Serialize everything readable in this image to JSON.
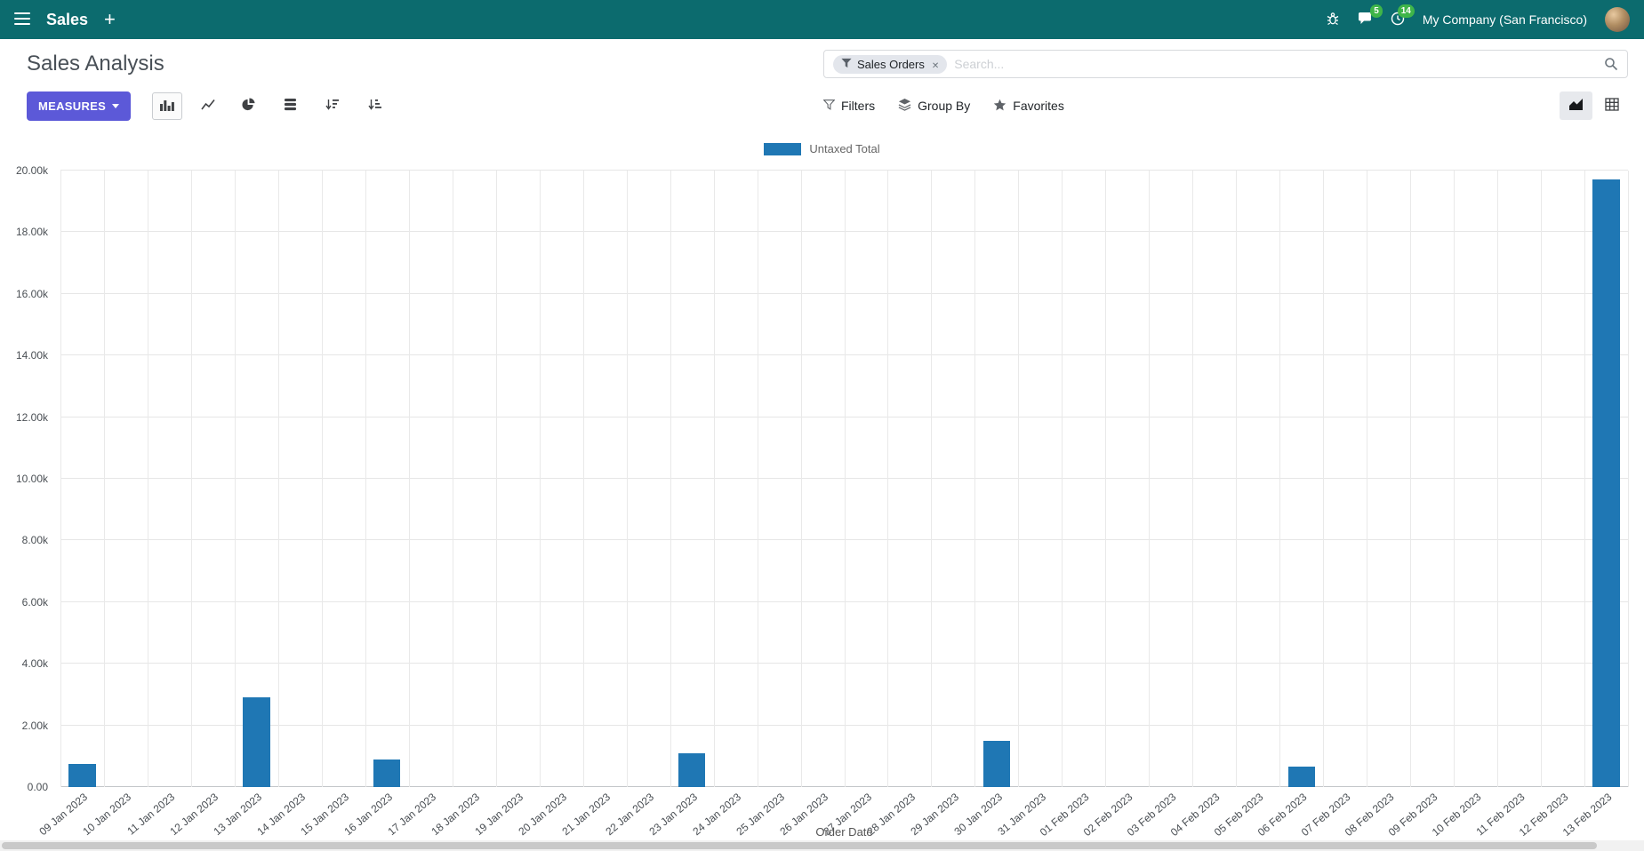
{
  "colors": {
    "navbar_bg": "#0c6b6e",
    "primary_button": "#5c59d8",
    "badge_green": "#3fb549",
    "bar": "#1f77b4"
  },
  "navbar": {
    "app_name": "Sales",
    "plus_label": "+",
    "messages_badge": "5",
    "activities_badge": "14",
    "company": "My Company (San Francisco)"
  },
  "control_panel": {
    "title": "Sales Analysis",
    "measures_label": "MEASURES",
    "search": {
      "facet_label": "Sales Orders",
      "remove_icon": "✕",
      "placeholder": "Search..."
    },
    "filters_label": "Filters",
    "groupby_label": "Group By",
    "favorites_label": "Favorites"
  },
  "chart_data": {
    "type": "bar",
    "title": "",
    "xlabel": "Order Date",
    "ylabel": "",
    "legend_position": "top",
    "grid": true,
    "ylim": [
      0,
      20000
    ],
    "ytick_step": 2000,
    "ytick_labels": [
      "0.00",
      "2.00k",
      "4.00k",
      "6.00k",
      "8.00k",
      "10.00k",
      "12.00k",
      "14.00k",
      "16.00k",
      "18.00k",
      "20.00k"
    ],
    "categories": [
      "09 Jan 2023",
      "10 Jan 2023",
      "11 Jan 2023",
      "12 Jan 2023",
      "13 Jan 2023",
      "14 Jan 2023",
      "15 Jan 2023",
      "16 Jan 2023",
      "17 Jan 2023",
      "18 Jan 2023",
      "19 Jan 2023",
      "20 Jan 2023",
      "21 Jan 2023",
      "22 Jan 2023",
      "23 Jan 2023",
      "24 Jan 2023",
      "25 Jan 2023",
      "26 Jan 2023",
      "27 Jan 2023",
      "28 Jan 2023",
      "29 Jan 2023",
      "30 Jan 2023",
      "31 Jan 2023",
      "01 Feb 2023",
      "02 Feb 2023",
      "03 Feb 2023",
      "04 Feb 2023",
      "05 Feb 2023",
      "06 Feb 2023",
      "07 Feb 2023",
      "08 Feb 2023",
      "09 Feb 2023",
      "10 Feb 2023",
      "11 Feb 2023",
      "12 Feb 2023",
      "13 Feb 2023"
    ],
    "series": [
      {
        "name": "Untaxed Total",
        "color": "#1f77b4",
        "values": [
          750,
          0,
          0,
          0,
          2900,
          0,
          0,
          900,
          0,
          0,
          0,
          0,
          0,
          0,
          1100,
          0,
          0,
          0,
          0,
          0,
          0,
          1500,
          0,
          0,
          0,
          0,
          0,
          0,
          650,
          0,
          0,
          0,
          0,
          0,
          0,
          19700
        ]
      }
    ]
  }
}
